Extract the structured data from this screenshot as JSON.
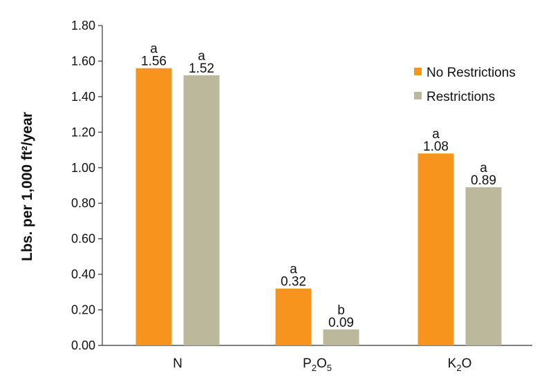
{
  "chart_data": {
    "type": "bar",
    "ylabel": "Lbs. per 1,000 ft²/year",
    "ylim": [
      0,
      1.8
    ],
    "yticks": [
      "0.00",
      "0.20",
      "0.40",
      "0.60",
      "0.80",
      "1.00",
      "1.20",
      "1.40",
      "1.60",
      "1.80"
    ],
    "categories": [
      {
        "main": "N",
        "parts": [
          {
            "t": "N",
            "sub": false
          }
        ]
      },
      {
        "main": "P2O5",
        "parts": [
          {
            "t": "P",
            "sub": false
          },
          {
            "t": "2",
            "sub": true
          },
          {
            "t": "O",
            "sub": false
          },
          {
            "t": "5",
            "sub": true
          }
        ]
      },
      {
        "main": "K2O",
        "parts": [
          {
            "t": "K",
            "sub": false
          },
          {
            "t": "2",
            "sub": true
          },
          {
            "t": "O",
            "sub": false
          }
        ]
      }
    ],
    "series": [
      {
        "name": "No Restrictions",
        "color": "#f7941d",
        "values": [
          1.56,
          0.32,
          1.08
        ],
        "labels": [
          "1.56",
          "0.32",
          "1.08"
        ],
        "significance": [
          "a",
          "a",
          "a"
        ]
      },
      {
        "name": "Restrictions",
        "color": "#bcb89c",
        "values": [
          1.52,
          0.09,
          0.89
        ],
        "labels": [
          "1.52",
          "0.09",
          "0.89"
        ],
        "significance": [
          "a",
          "b",
          "a"
        ]
      }
    ],
    "legend": "top-right",
    "grid": false
  }
}
